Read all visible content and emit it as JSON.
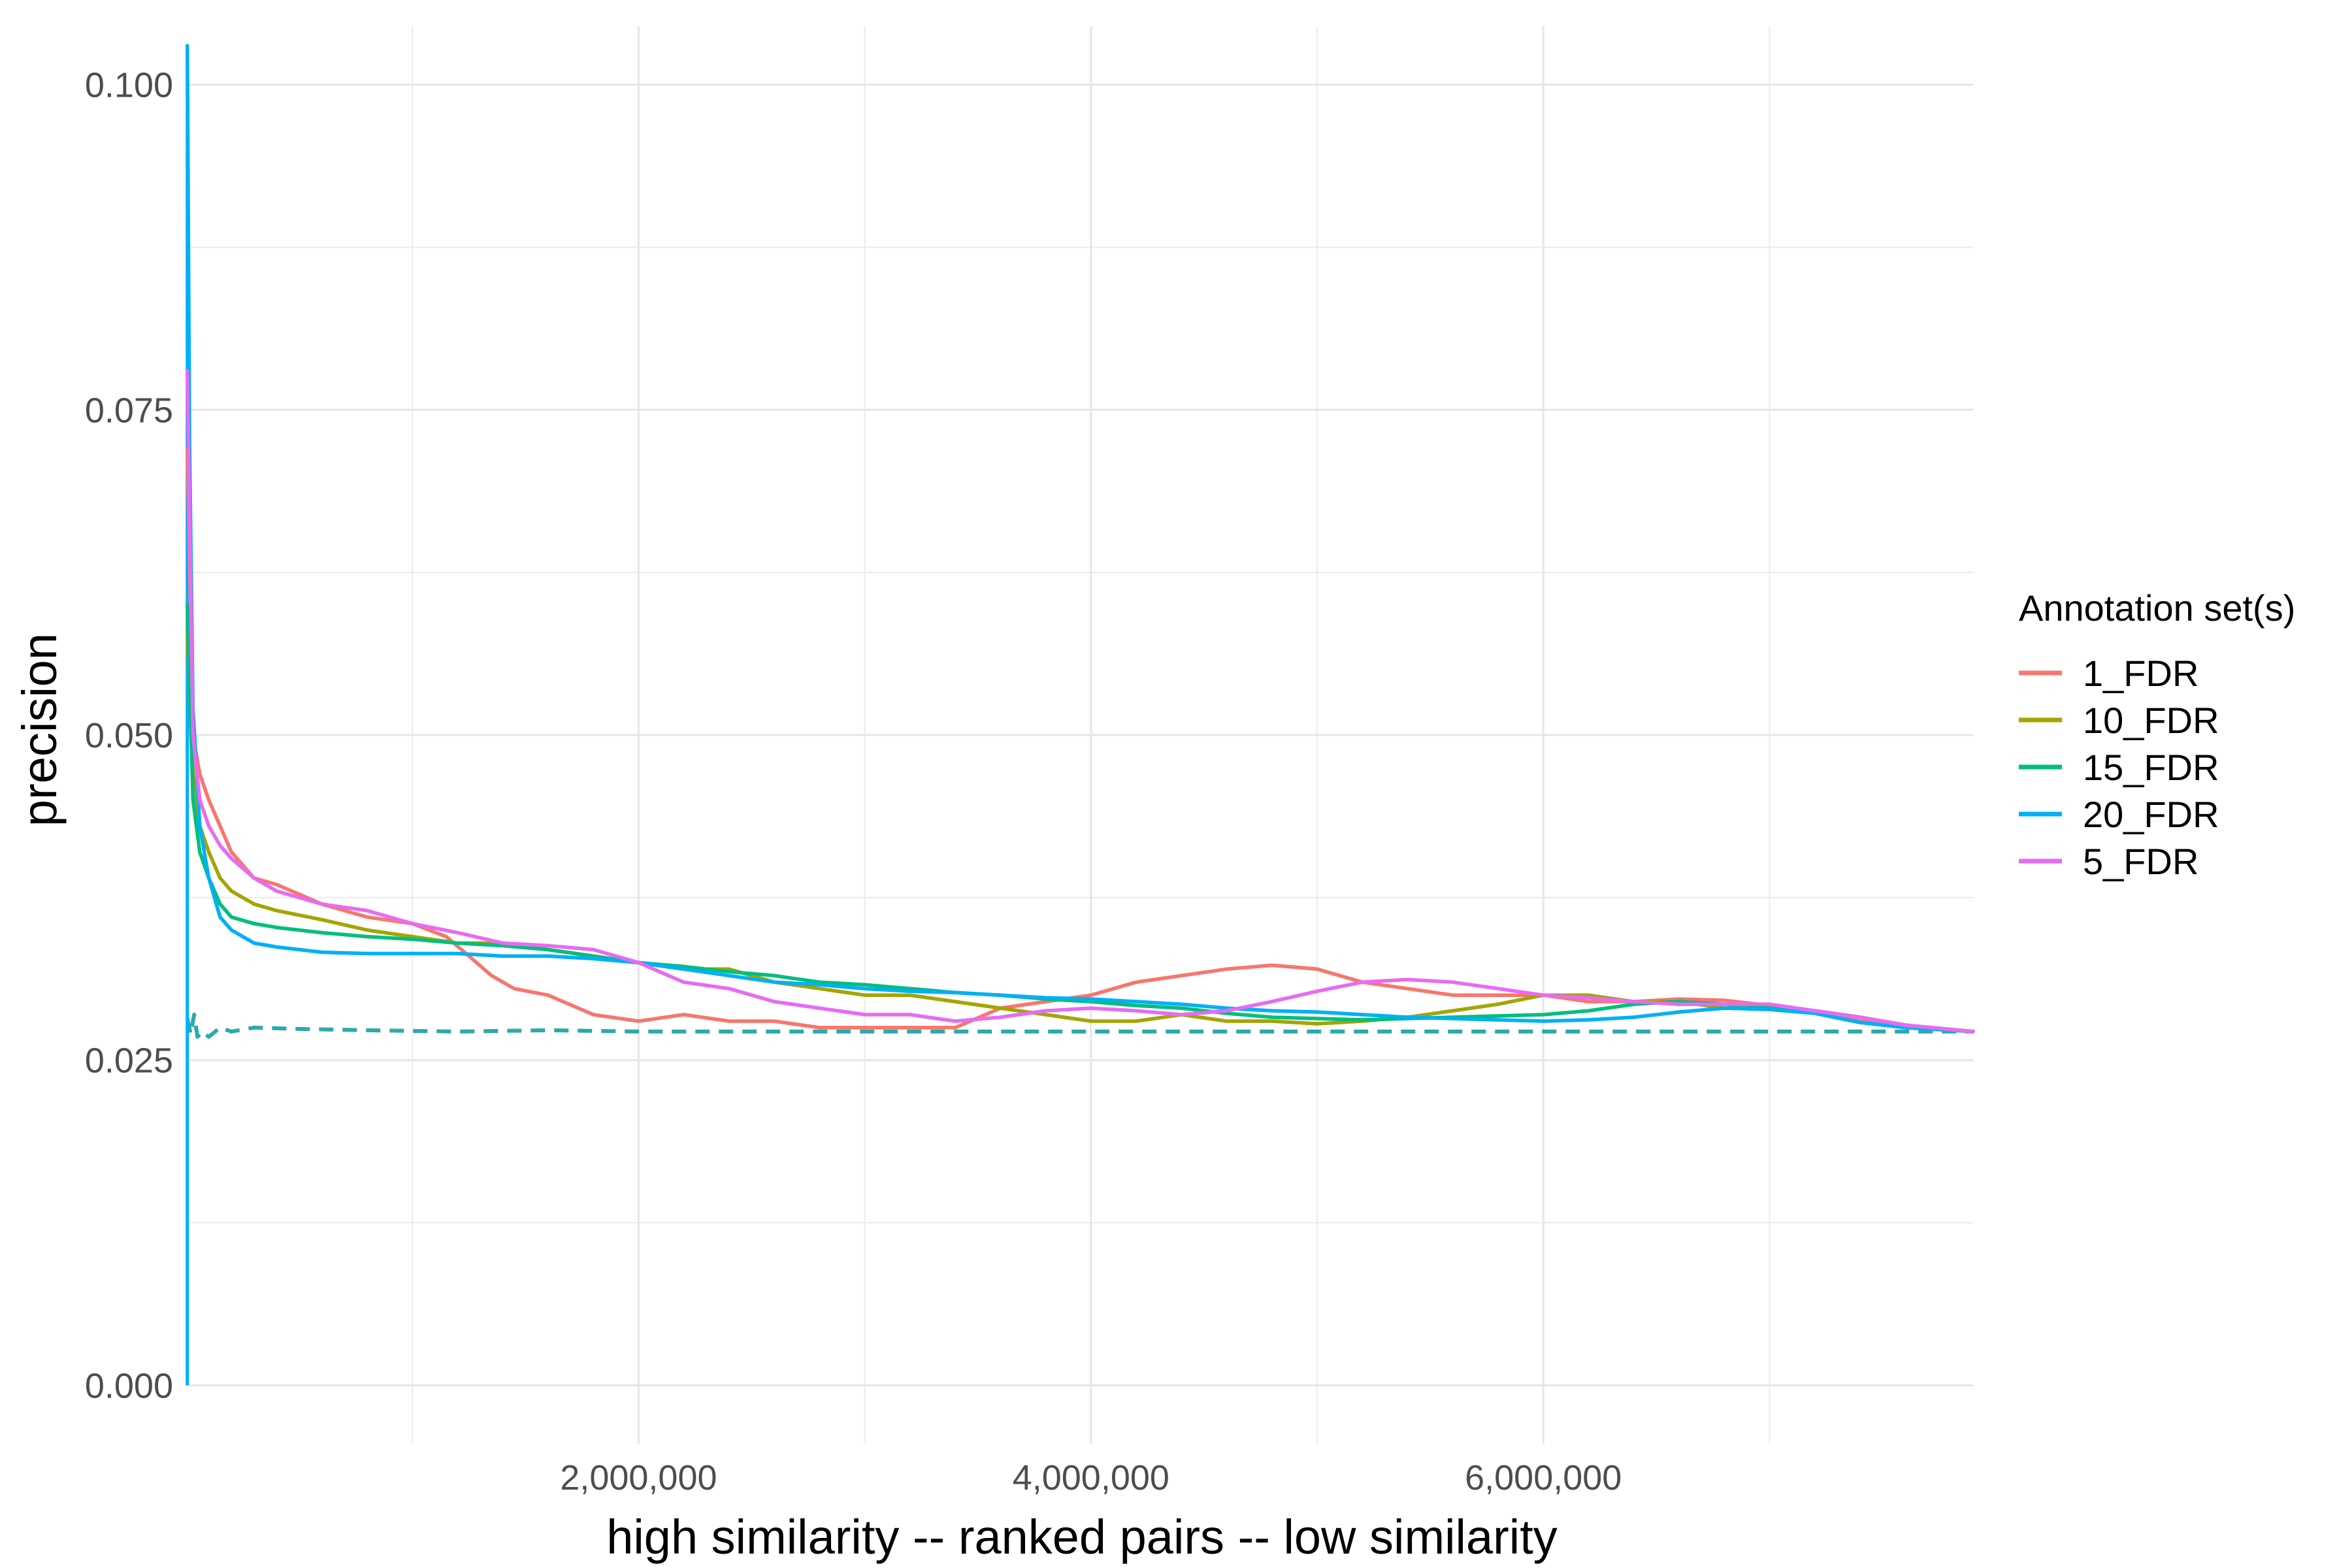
{
  "chart_data": {
    "type": "line",
    "title": "",
    "xlabel": "high similarity -- ranked pairs -- low similarity",
    "ylabel": "precision",
    "xlim": [
      0,
      7900000
    ],
    "ylim": [
      -0.0045,
      0.1045
    ],
    "x_ticks": [
      2000000,
      4000000,
      6000000
    ],
    "x_tick_labels": [
      "2,000,000",
      "4,000,000",
      "6,000,000"
    ],
    "x_minor_ticks": [
      1000000,
      3000000,
      5000000,
      7000000
    ],
    "y_ticks": [
      0,
      0.025,
      0.05,
      0.075,
      0.1
    ],
    "y_tick_labels": [
      "0.000",
      "0.025",
      "0.050",
      "0.075",
      "0.100"
    ],
    "y_minor_ticks": [
      0.0125,
      0.0375,
      0.0625,
      0.0875
    ],
    "grid": true,
    "legend": {
      "title": "Annotation set(s)",
      "placement": "right"
    },
    "series": [
      {
        "name": "1_FDR",
        "color": "#F8766D",
        "x": [
          5000,
          30000,
          60000,
          100000,
          150000,
          200000,
          300000,
          400000,
          600000,
          800000,
          1000000,
          1150000,
          1250000,
          1350000,
          1450000,
          1600000,
          1800000,
          2000000,
          2200000,
          2400000,
          2600000,
          2800000,
          3000000,
          3200000,
          3400000,
          3600000,
          3800000,
          4000000,
          4200000,
          4400000,
          4600000,
          4800000,
          5000000,
          5200000,
          5400000,
          5600000,
          5800000,
          6000000,
          6200000,
          6400000,
          6600000,
          6800000,
          7000000,
          7200000,
          7400000,
          7600000,
          7900000
        ],
        "y": [
          0.072,
          0.05,
          0.047,
          0.045,
          0.043,
          0.041,
          0.039,
          0.0385,
          0.037,
          0.036,
          0.0355,
          0.0345,
          0.033,
          0.0315,
          0.0305,
          0.03,
          0.0285,
          0.028,
          0.0285,
          0.028,
          0.028,
          0.0275,
          0.0275,
          0.0275,
          0.0275,
          0.029,
          0.0295,
          0.03,
          0.031,
          0.0315,
          0.032,
          0.0323,
          0.032,
          0.031,
          0.0305,
          0.03,
          0.03,
          0.03,
          0.0295,
          0.0295,
          0.0297,
          0.0296,
          0.0292,
          0.0288,
          0.028,
          0.0276,
          0.0272
        ]
      },
      {
        "name": "10_FDR",
        "color": "#A3A500",
        "x": [
          5000,
          30000,
          60000,
          100000,
          150000,
          200000,
          300000,
          400000,
          600000,
          800000,
          1000000,
          1200000,
          1400000,
          1600000,
          1800000,
          2000000,
          2200000,
          2400000,
          2600000,
          2800000,
          3000000,
          3200000,
          3400000,
          3600000,
          3800000,
          4000000,
          4200000,
          4400000,
          4600000,
          4800000,
          5000000,
          5200000,
          5400000,
          5600000,
          5800000,
          6000000,
          6200000,
          6400000,
          6600000,
          6800000,
          7000000,
          7200000,
          7400000,
          7600000,
          7900000
        ],
        "y": [
          0.058,
          0.047,
          0.043,
          0.041,
          0.039,
          0.038,
          0.037,
          0.0365,
          0.0358,
          0.035,
          0.0345,
          0.034,
          0.034,
          0.0335,
          0.033,
          0.0325,
          0.032,
          0.032,
          0.031,
          0.0305,
          0.03,
          0.03,
          0.0295,
          0.029,
          0.0285,
          0.028,
          0.028,
          0.0285,
          0.028,
          0.028,
          0.0278,
          0.028,
          0.0283,
          0.0288,
          0.0293,
          0.03,
          0.03,
          0.0295,
          0.0295,
          0.029,
          0.029,
          0.0288,
          0.0283,
          0.0277,
          0.0272
        ]
      },
      {
        "name": "15_FDR",
        "color": "#00BF7D",
        "x": [
          5000,
          30000,
          60000,
          100000,
          150000,
          200000,
          300000,
          400000,
          600000,
          800000,
          1000000,
          1200000,
          1400000,
          1600000,
          1800000,
          2000000,
          2200000,
          2400000,
          2600000,
          2800000,
          3000000,
          3200000,
          3400000,
          3600000,
          3800000,
          4000000,
          4200000,
          4400000,
          4600000,
          4800000,
          5000000,
          5200000,
          5400000,
          5600000,
          5800000,
          6000000,
          6200000,
          6400000,
          6600000,
          6800000,
          7000000,
          7200000,
          7400000,
          7600000,
          7900000
        ],
        "y": [
          0.06,
          0.045,
          0.041,
          0.039,
          0.037,
          0.036,
          0.0355,
          0.0352,
          0.0348,
          0.0345,
          0.0343,
          0.034,
          0.0338,
          0.0335,
          0.033,
          0.0325,
          0.0322,
          0.0318,
          0.0315,
          0.031,
          0.0308,
          0.0305,
          0.0302,
          0.03,
          0.0297,
          0.0295,
          0.0292,
          0.029,
          0.0286,
          0.0283,
          0.0282,
          0.0281,
          0.0282,
          0.0283,
          0.0284,
          0.0285,
          0.0288,
          0.0293,
          0.0295,
          0.0293,
          0.029,
          0.0288,
          0.0283,
          0.0277,
          0.0272
        ]
      },
      {
        "name": "20_FDR",
        "color": "#00B0F6",
        "x": [
          5000,
          15000,
          30000,
          60000,
          100000,
          150000,
          200000,
          300000,
          400000,
          600000,
          800000,
          1000000,
          1200000,
          1400000,
          1600000,
          1800000,
          2000000,
          2200000,
          2400000,
          2600000,
          2800000,
          3000000,
          3200000,
          3400000,
          3600000,
          3800000,
          4000000,
          4200000,
          4400000,
          4600000,
          4800000,
          5000000,
          5200000,
          5400000,
          5600000,
          5800000,
          6000000,
          6200000,
          6400000,
          6600000,
          6800000,
          7000000,
          7200000,
          7400000,
          7600000,
          7900000
        ],
        "y": [
          0.103,
          0.072,
          0.052,
          0.043,
          0.039,
          0.036,
          0.035,
          0.034,
          0.0337,
          0.0333,
          0.0332,
          0.0332,
          0.0332,
          0.033,
          0.033,
          0.0328,
          0.0325,
          0.032,
          0.0315,
          0.031,
          0.0308,
          0.0305,
          0.0303,
          0.0302,
          0.03,
          0.0298,
          0.0297,
          0.0295,
          0.0293,
          0.029,
          0.0288,
          0.0287,
          0.0285,
          0.0283,
          0.0282,
          0.0281,
          0.028,
          0.0281,
          0.0283,
          0.0287,
          0.029,
          0.0289,
          0.0286,
          0.0279,
          0.0275,
          0.0272
        ]
      },
      {
        "name": "5_FDR",
        "color": "#E76BF3",
        "x": [
          5000,
          30000,
          60000,
          100000,
          150000,
          200000,
          300000,
          400000,
          600000,
          800000,
          1000000,
          1200000,
          1400000,
          1600000,
          1800000,
          2000000,
          2200000,
          2400000,
          2600000,
          2800000,
          3000000,
          3200000,
          3400000,
          3600000,
          3800000,
          4000000,
          4200000,
          4400000,
          4600000,
          4800000,
          5000000,
          5200000,
          5400000,
          5600000,
          5800000,
          6000000,
          6200000,
          6400000,
          6600000,
          6800000,
          7000000,
          7200000,
          7400000,
          7600000,
          7900000
        ],
        "y": [
          0.078,
          0.05,
          0.045,
          0.043,
          0.0415,
          0.0405,
          0.039,
          0.038,
          0.037,
          0.0365,
          0.0355,
          0.0348,
          0.034,
          0.0338,
          0.0335,
          0.0325,
          0.031,
          0.0305,
          0.0295,
          0.029,
          0.0285,
          0.0285,
          0.028,
          0.0283,
          0.0288,
          0.029,
          0.0288,
          0.0285,
          0.0288,
          0.0295,
          0.0303,
          0.031,
          0.0312,
          0.031,
          0.0305,
          0.03,
          0.0298,
          0.0295,
          0.0293,
          0.0293,
          0.0293,
          0.0288,
          0.0283,
          0.0277,
          0.0272
        ]
      }
    ],
    "baseline": {
      "color": "#2DA9A9",
      "style": "dashed",
      "x": [
        5000,
        20000,
        35000,
        50000,
        70000,
        100000,
        150000,
        200000,
        300000,
        500000,
        800000,
        1200000,
        1600000,
        2000000,
        3000000,
        4000000,
        5000000,
        6000000,
        7000000,
        7900000
      ],
      "y": [
        0.0282,
        0.027,
        0.0285,
        0.0268,
        0.0272,
        0.0268,
        0.0275,
        0.0272,
        0.0275,
        0.0274,
        0.0273,
        0.0272,
        0.0273,
        0.0272,
        0.0272,
        0.0272,
        0.0272,
        0.0272,
        0.0272,
        0.0272
      ]
    },
    "initial_drop": {
      "color": "#00B0F6",
      "x": [
        5000,
        5000
      ],
      "y": [
        0.0,
        0.103
      ]
    }
  }
}
